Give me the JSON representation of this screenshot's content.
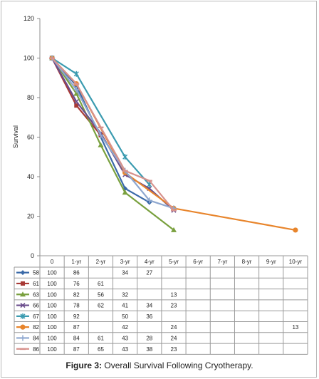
{
  "chart_data": {
    "type": "line",
    "ylabel": "Survival",
    "ylim": [
      0,
      120
    ],
    "yticks": [
      0,
      20,
      40,
      60,
      80,
      100,
      120
    ],
    "categories": [
      "0",
      "1-yr",
      "2-yr",
      "3-yr",
      "4-yr",
      "5-yr",
      "6-yr",
      "7-yr",
      "8-yr",
      "9-yr",
      "10-yr"
    ],
    "grid": false,
    "legend": "data-table-below",
    "series": [
      {
        "name": "58",
        "color": "#3b6aa8",
        "marker": "diamond",
        "values": [
          100,
          86,
          null,
          34,
          27,
          null,
          null,
          null,
          null,
          null,
          null
        ],
        "plot": [
          100,
          86,
          null,
          34,
          27,
          null,
          null,
          null,
          null,
          null,
          null
        ]
      },
      {
        "name": "61",
        "color": "#a83a36",
        "marker": "square",
        "values": [
          100,
          76,
          61,
          null,
          null,
          null,
          null,
          null,
          null,
          null,
          null
        ],
        "plot": [
          100,
          76,
          61,
          null,
          null,
          null,
          null,
          null,
          null,
          null,
          null
        ]
      },
      {
        "name": "63",
        "color": "#79a03e",
        "marker": "triangle",
        "values": [
          100,
          82,
          56,
          32,
          null,
          13,
          null,
          null,
          null,
          null,
          null
        ],
        "plot": [
          100,
          82,
          56,
          32,
          null,
          13,
          null,
          null,
          null,
          null,
          null
        ]
      },
      {
        "name": "66",
        "color": "#6a4c8c",
        "marker": "x",
        "values": [
          100,
          78,
          62,
          41,
          34,
          23,
          null,
          null,
          null,
          null,
          null
        ],
        "plot": [
          100,
          78,
          62,
          41,
          34,
          23,
          null,
          null,
          null,
          null,
          null
        ]
      },
      {
        "name": "67",
        "color": "#3b9bb0",
        "marker": "star",
        "values": [
          100,
          92,
          null,
          50,
          36,
          null,
          null,
          null,
          null,
          null,
          null
        ],
        "plot": [
          100,
          92,
          null,
          50,
          36,
          null,
          null,
          null,
          null,
          null,
          null
        ]
      },
      {
        "name": "82",
        "color": "#e8852c",
        "marker": "circle",
        "values": [
          100,
          87,
          null,
          42,
          null,
          24,
          null,
          null,
          null,
          null,
          13
        ],
        "plot": [
          100,
          87,
          null,
          42,
          null,
          24,
          null,
          null,
          null,
          null,
          13
        ]
      },
      {
        "name": "84",
        "color": "#8ea7cf",
        "marker": "plus",
        "values": [
          100,
          84,
          61,
          43,
          28,
          24,
          null,
          null,
          null,
          null,
          null
        ],
        "plot": [
          100,
          84,
          61,
          43,
          28,
          24,
          null,
          null,
          null,
          null,
          null
        ]
      },
      {
        "name": "86",
        "color": "#d7928d",
        "marker": "dash",
        "values": [
          100,
          87,
          65,
          43,
          38,
          23,
          null,
          null,
          null,
          null,
          null
        ],
        "plot": [
          100,
          87,
          65,
          43,
          38,
          23,
          null,
          null,
          null,
          null,
          null
        ]
      }
    ]
  },
  "caption": {
    "label": "Figure 3:",
    "text": "Overall Survival Following Cryotherapy."
  }
}
